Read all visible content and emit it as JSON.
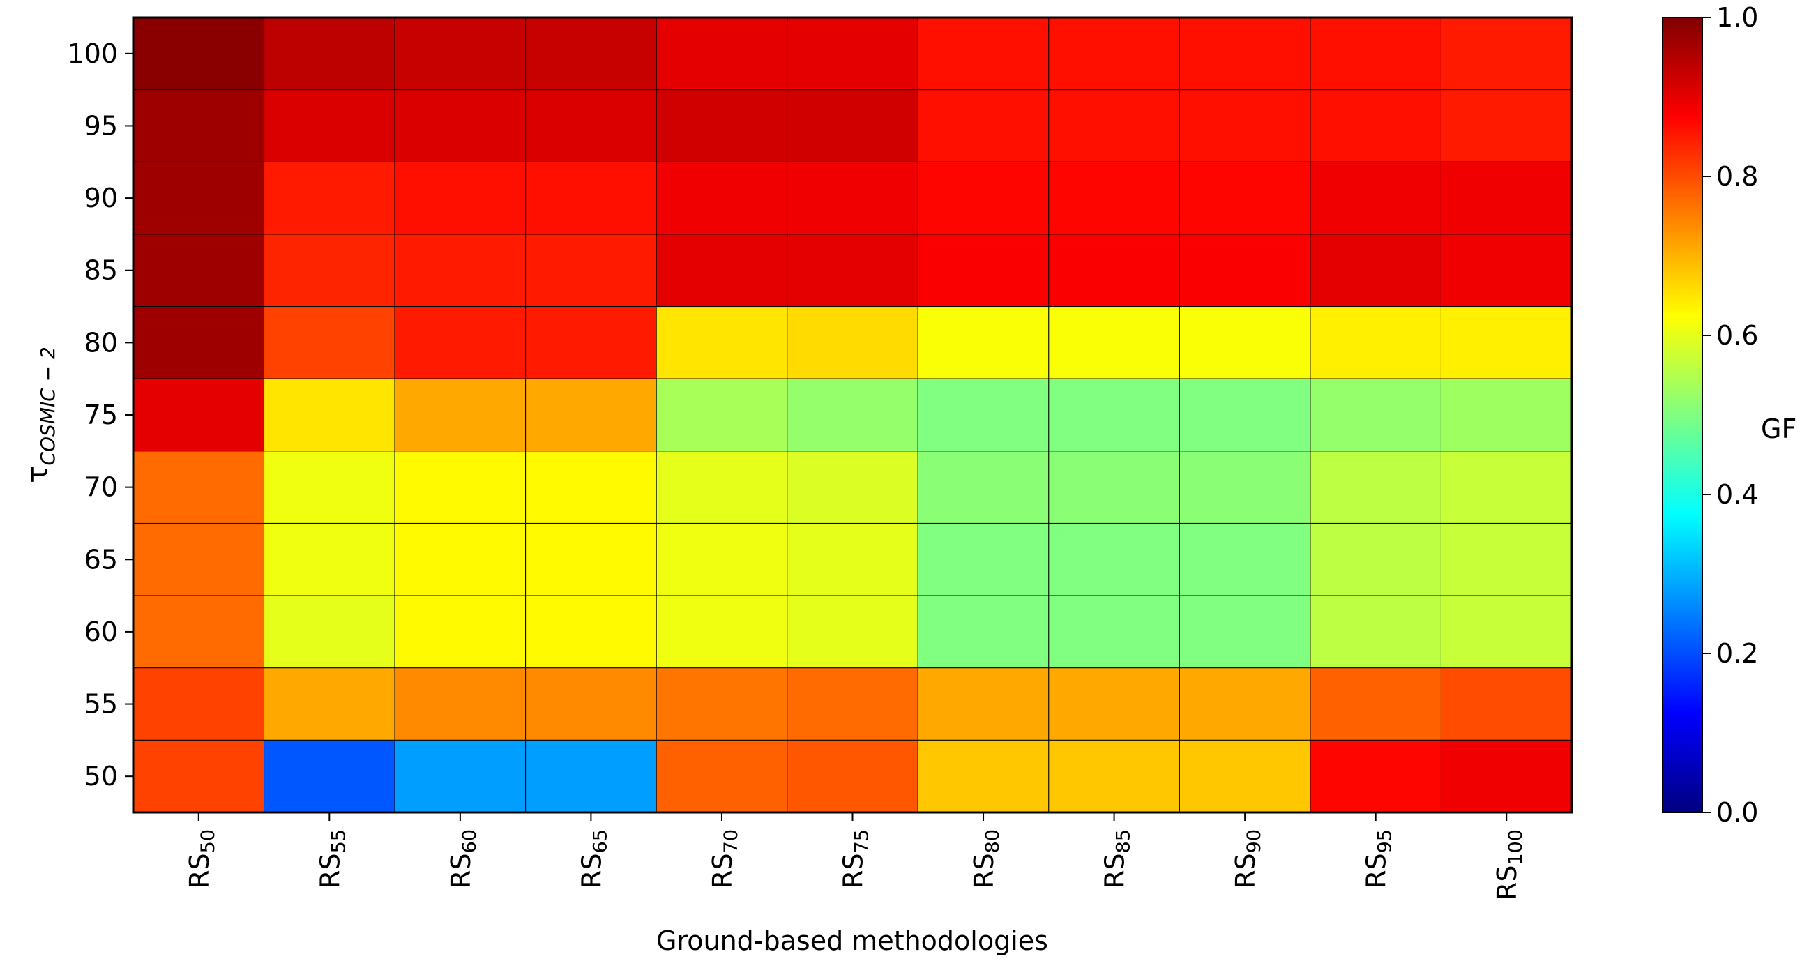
{
  "chart_data": {
    "type": "heatmap",
    "xlabel": "Ground-based methodologies",
    "ylabel": {
      "base": "τ",
      "sub": "COSMIC − 2"
    },
    "x_categories": [
      {
        "base": "RS",
        "sub": "50"
      },
      {
        "base": "RS",
        "sub": "55"
      },
      {
        "base": "RS",
        "sub": "60"
      },
      {
        "base": "RS",
        "sub": "65"
      },
      {
        "base": "RS",
        "sub": "70"
      },
      {
        "base": "RS",
        "sub": "75"
      },
      {
        "base": "RS",
        "sub": "80"
      },
      {
        "base": "RS",
        "sub": "85"
      },
      {
        "base": "RS",
        "sub": "90"
      },
      {
        "base": "RS",
        "sub": "95"
      },
      {
        "base": "RS",
        "sub": "100"
      }
    ],
    "y_categories": [
      "100",
      "95",
      "90",
      "85",
      "80",
      "75",
      "70",
      "65",
      "60",
      "55",
      "50"
    ],
    "values": [
      [
        0.99,
        0.94,
        0.93,
        0.93,
        0.9,
        0.9,
        0.86,
        0.86,
        0.86,
        0.86,
        0.85
      ],
      [
        0.97,
        0.91,
        0.91,
        0.91,
        0.92,
        0.92,
        0.86,
        0.86,
        0.86,
        0.86,
        0.85
      ],
      [
        0.97,
        0.85,
        0.86,
        0.86,
        0.89,
        0.89,
        0.87,
        0.87,
        0.87,
        0.89,
        0.89
      ],
      [
        0.97,
        0.84,
        0.85,
        0.85,
        0.9,
        0.9,
        0.88,
        0.88,
        0.88,
        0.9,
        0.89
      ],
      [
        0.97,
        0.81,
        0.85,
        0.85,
        0.65,
        0.66,
        0.62,
        0.62,
        0.62,
        0.64,
        0.64
      ],
      [
        0.9,
        0.65,
        0.71,
        0.71,
        0.54,
        0.52,
        0.5,
        0.5,
        0.5,
        0.52,
        0.53
      ],
      [
        0.77,
        0.61,
        0.63,
        0.63,
        0.6,
        0.59,
        0.51,
        0.51,
        0.51,
        0.56,
        0.57
      ],
      [
        0.77,
        0.61,
        0.63,
        0.63,
        0.61,
        0.6,
        0.5,
        0.5,
        0.5,
        0.56,
        0.57
      ],
      [
        0.77,
        0.6,
        0.63,
        0.63,
        0.61,
        0.6,
        0.5,
        0.5,
        0.5,
        0.56,
        0.57
      ],
      [
        0.81,
        0.71,
        0.74,
        0.74,
        0.76,
        0.77,
        0.71,
        0.71,
        0.71,
        0.78,
        0.8
      ],
      [
        0.81,
        0.21,
        0.28,
        0.28,
        0.78,
        0.79,
        0.68,
        0.68,
        0.68,
        0.87,
        0.89
      ]
    ],
    "colorbar": {
      "label": "GF",
      "range": [
        0.0,
        1.0
      ],
      "ticks": [
        "0.0",
        "0.2",
        "0.4",
        "0.6",
        "0.8",
        "1.0"
      ],
      "colormap": "jet"
    },
    "grid": false
  }
}
